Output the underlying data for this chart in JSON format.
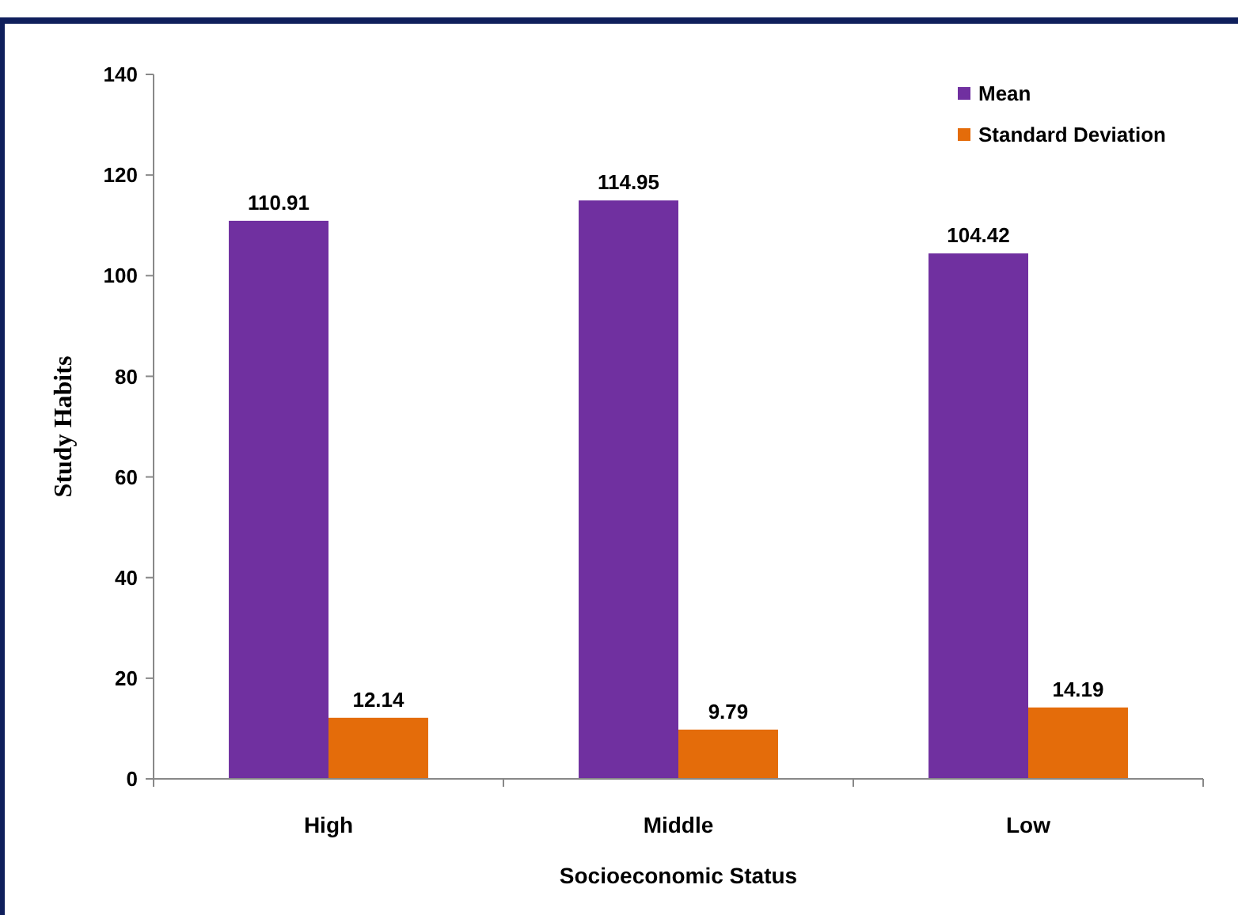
{
  "chart_data": {
    "type": "bar",
    "xlabel": "Socioeconomic Status",
    "ylabel": "Study Habits",
    "categories": [
      "High",
      "Middle",
      "Low"
    ],
    "series": [
      {
        "name": "Mean",
        "color": "#7030a0",
        "values": [
          110.91,
          114.95,
          104.42
        ]
      },
      {
        "name": "Standard Deviation",
        "color": "#e46c0a",
        "values": [
          12.14,
          9.79,
          14.19
        ]
      }
    ],
    "ylim": [
      0,
      140
    ],
    "yticks": [
      0,
      20,
      40,
      60,
      80,
      100,
      120,
      140
    ],
    "data_labels": true,
    "legend": "top right",
    "grid": false
  }
}
